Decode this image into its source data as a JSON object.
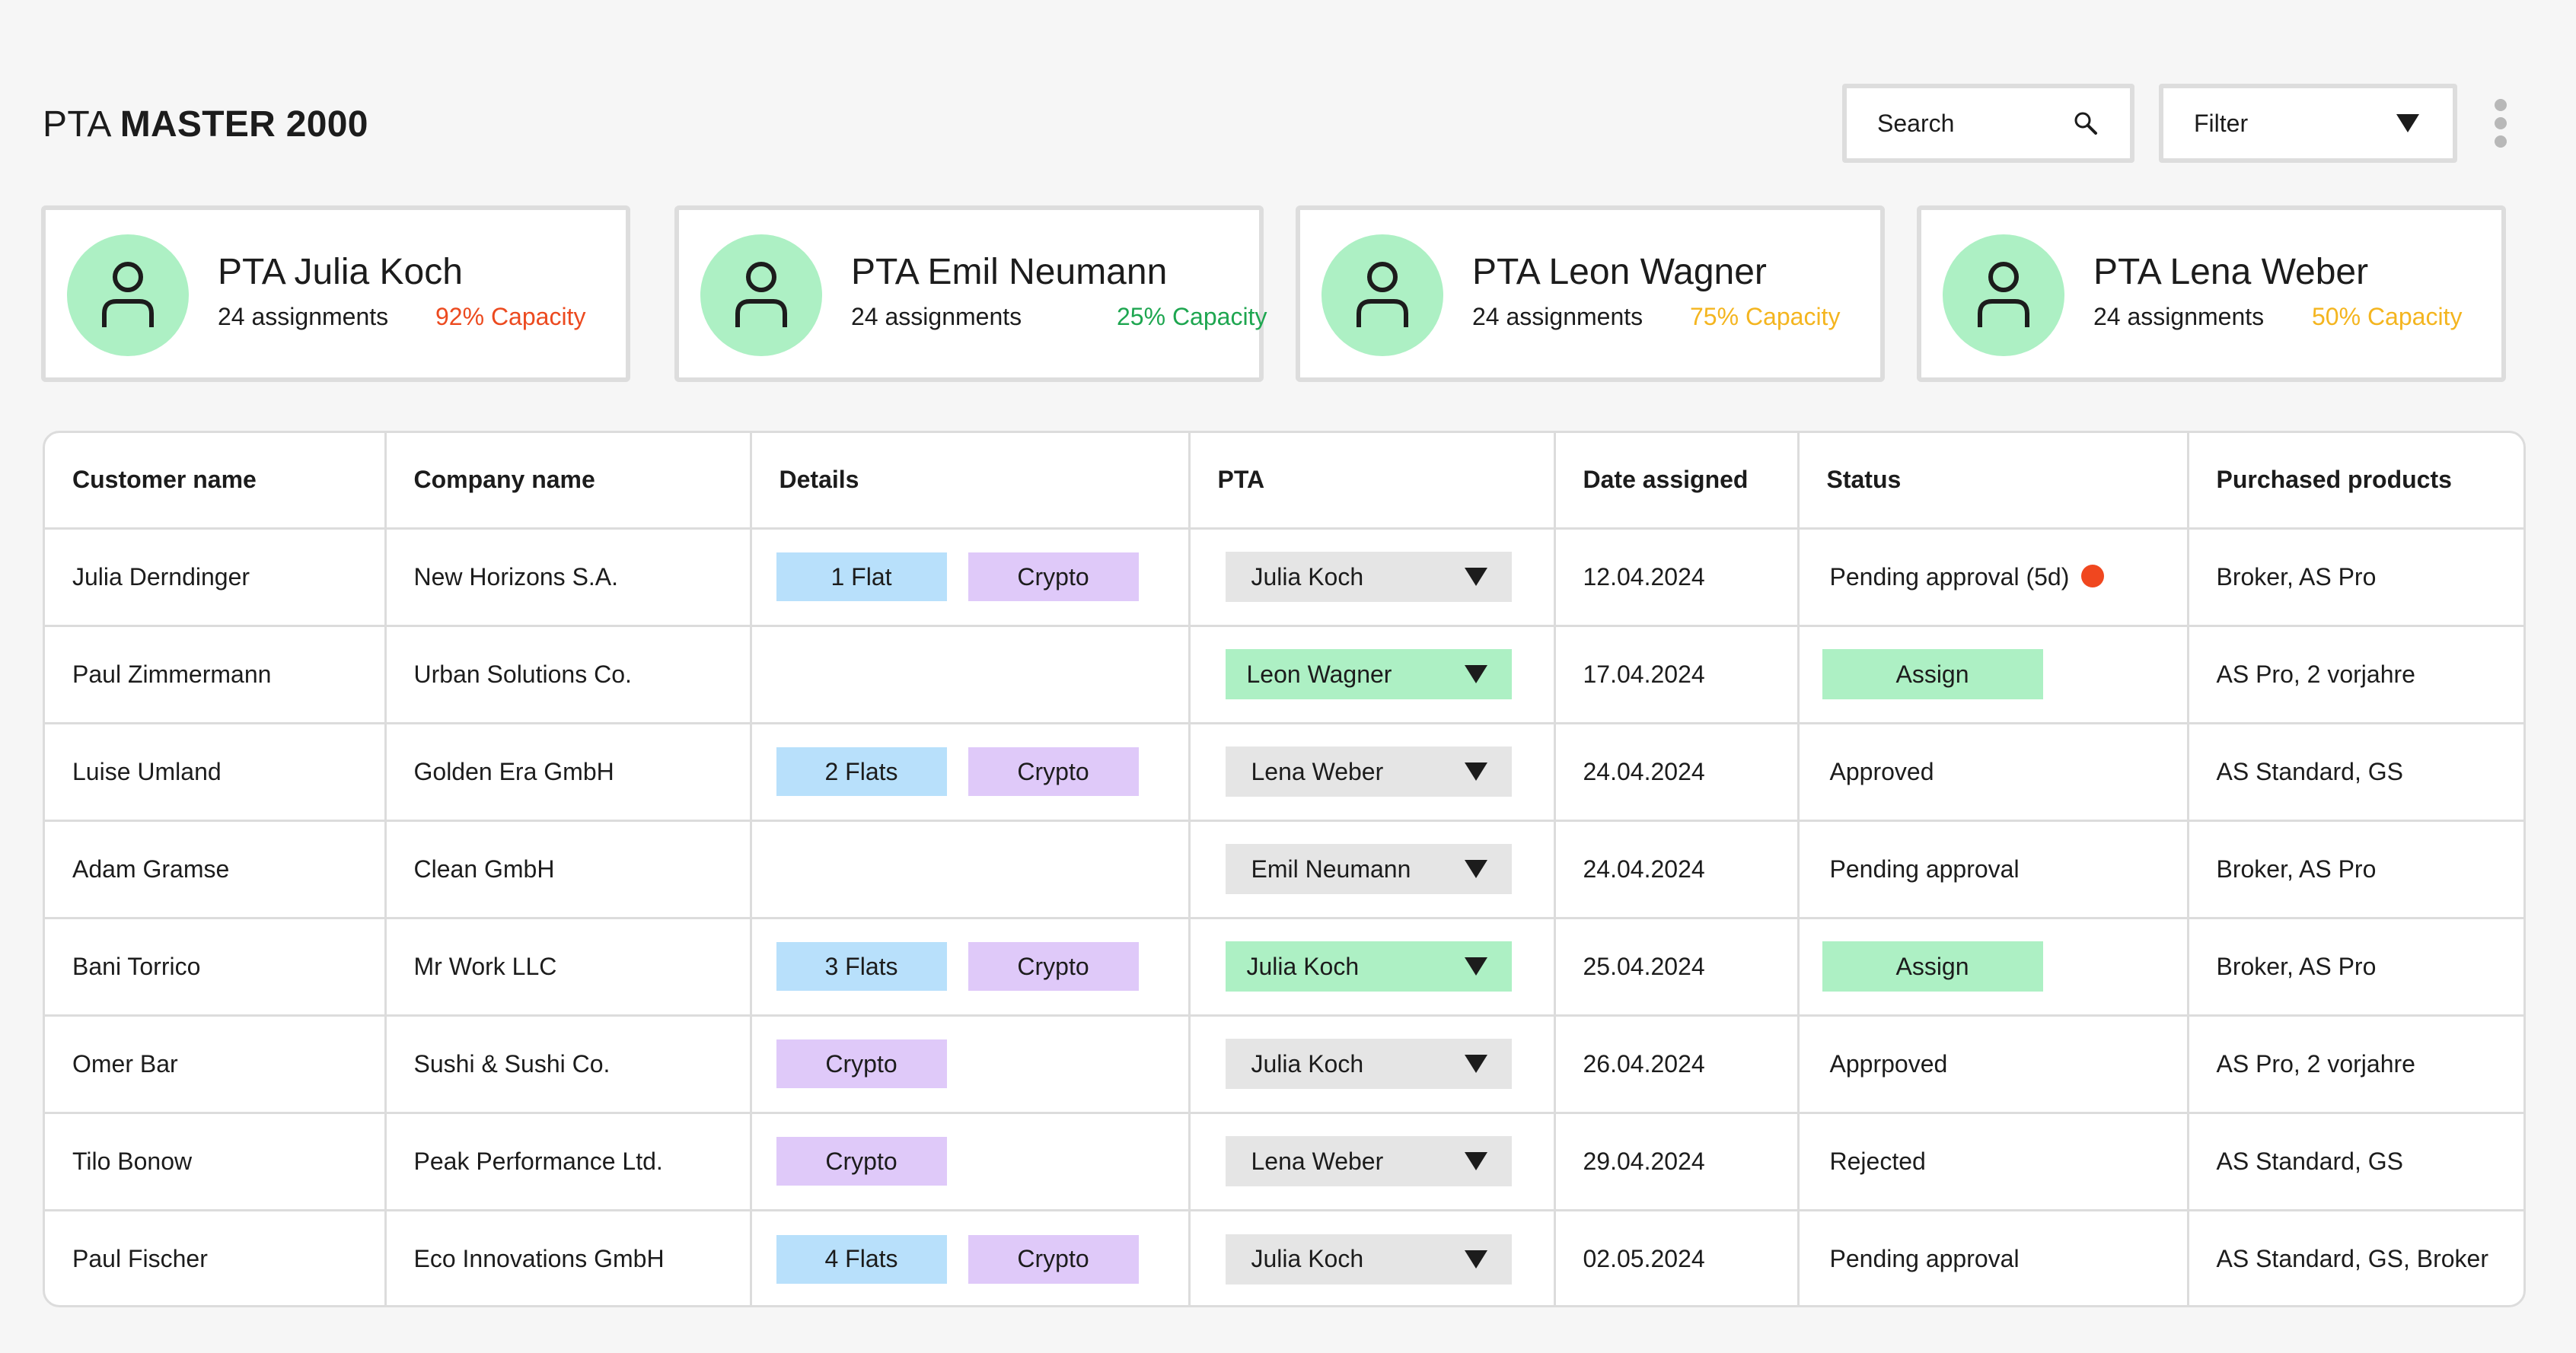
{
  "header": {
    "title_light": "PTA",
    "title_bold": "MASTER 2000",
    "search": {
      "placeholder": "Search",
      "icon": "search-icon"
    },
    "filter": {
      "label": "Filter",
      "icon": "chevron-down-icon"
    },
    "more_icon": "kebab-menu-icon"
  },
  "cards": [
    {
      "name": "PTA Julia Koch",
      "assignments": "24 assignments",
      "capacity": "92% Capacity",
      "capacity_color": "#ec4a1f"
    },
    {
      "name": "PTA Emil Neumann",
      "assignments": "24 assignments",
      "capacity": "25% Capacity",
      "capacity_color": "#1ea650"
    },
    {
      "name": "PTA Leon Wagner",
      "assignments": "24 assignments",
      "capacity": "75% Capacity",
      "capacity_color": "#f4b51f"
    },
    {
      "name": "PTA Lena Weber",
      "assignments": "24 assignments",
      "capacity": "50% Capacity",
      "capacity_color": "#f4b51f"
    }
  ],
  "table": {
    "columns": [
      "Customer name",
      "Company name",
      "Details",
      "PTA",
      "Date assigned",
      "Status",
      "Purchased products"
    ],
    "rows": [
      {
        "customer": "Julia Derndinger",
        "company": "New Horizons S.A.",
        "flats": "1 Flat",
        "crypto": "Crypto",
        "pta": "Julia Koch",
        "pta_highlight": false,
        "date": "12.04.2024",
        "status": "Pending approval (5d)",
        "status_alert": true,
        "status_button": false,
        "products": "Broker, AS Pro"
      },
      {
        "customer": "Paul Zimmermann",
        "company": "Urban Solutions Co.",
        "flats": "",
        "crypto": "",
        "pta": "Leon Wagner",
        "pta_highlight": true,
        "date": "17.04.2024",
        "status": "Assign",
        "status_alert": false,
        "status_button": true,
        "products": "AS Pro, 2 vorjahre"
      },
      {
        "customer": "Luise Umland",
        "company": "Golden Era GmbH",
        "flats": "2 Flats",
        "crypto": "Crypto",
        "pta": "Lena Weber",
        "pta_highlight": false,
        "date": "24.04.2024",
        "status": "Approved",
        "status_alert": false,
        "status_button": false,
        "products": "AS Standard, GS"
      },
      {
        "customer": "Adam Gramse",
        "company": "Clean GmbH",
        "flats": "",
        "crypto": "",
        "pta": "Emil Neumann",
        "pta_highlight": false,
        "date": "24.04.2024",
        "status": "Pending approval",
        "status_alert": false,
        "status_button": false,
        "products": "Broker, AS Pro"
      },
      {
        "customer": "Bani Torrico",
        "company": "Mr Work LLC",
        "flats": "3 Flats",
        "crypto": "Crypto",
        "pta": "Julia Koch",
        "pta_highlight": true,
        "date": "25.04.2024",
        "status": "Assign",
        "status_alert": false,
        "status_button": true,
        "products": "Broker, AS Pro"
      },
      {
        "customer": "Omer Bar",
        "company": "Sushi & Sushi Co.",
        "flats": "",
        "crypto": "Crypto",
        "pta": "Julia Koch",
        "pta_highlight": false,
        "date": "26.04.2024",
        "status": "Apprpoved",
        "status_alert": false,
        "status_button": false,
        "products": "AS Pro, 2 vorjahre"
      },
      {
        "customer": "Tilo Bonow",
        "company": "Peak Performance Ltd.",
        "flats": "",
        "crypto": "Crypto",
        "pta": "Lena Weber",
        "pta_highlight": false,
        "date": "29.04.2024",
        "status": "Rejected",
        "status_alert": false,
        "status_button": false,
        "products": "AS Standard, GS"
      },
      {
        "customer": "Paul Fischer",
        "company": "Eco Innovations GmbH",
        "flats": "4 Flats",
        "crypto": "Crypto",
        "pta": "Julia Koch",
        "pta_highlight": false,
        "date": "02.05.2024",
        "status": "Pending approval",
        "status_alert": false,
        "status_button": false,
        "products": "AS Standard, GS, Broker"
      }
    ]
  },
  "colors": {
    "accent_green": "#adf0c4",
    "flat_blue": "#b8e0fb",
    "crypto_purple": "#dfc9f9",
    "alert_red": "#f0471f"
  }
}
